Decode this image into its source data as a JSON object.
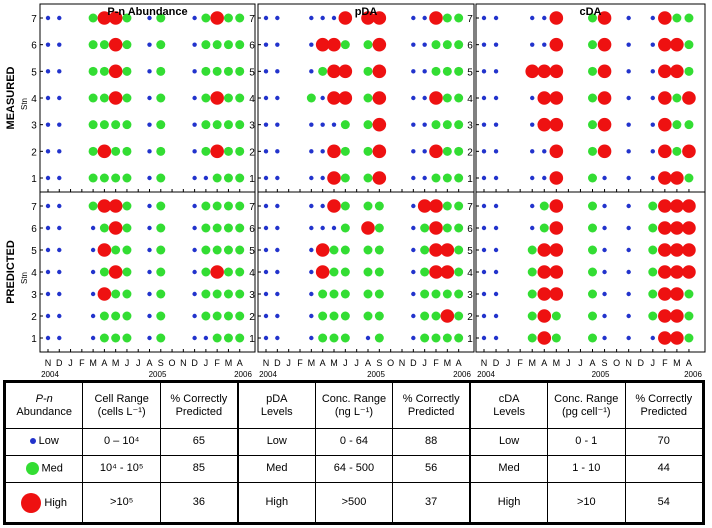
{
  "colors": {
    "low": "#2233cc",
    "med": "#33dd33",
    "high": "#ee1111"
  },
  "ylabel": "Stn",
  "row_labels": [
    "MEASURED",
    "PREDICTED"
  ],
  "stations": [
    "1",
    "2",
    "3",
    "4",
    "5",
    "6",
    "7"
  ],
  "month_ticks": [
    "N",
    "D",
    "J",
    "F",
    "M",
    "A",
    "M",
    "J",
    "J",
    "A",
    "S",
    "O",
    "N",
    "D",
    "J",
    "F",
    "M",
    "A"
  ],
  "year_labels": [
    "2004",
    "2005",
    "2006"
  ],
  "chart_data": {
    "type": "scatter",
    "note_levels": [
      "L = Low",
      "M = Med",
      "H = High"
    ],
    "months": [
      "N04",
      "D04",
      "J05",
      "F05",
      "M05",
      "A05",
      "M05b",
      "J05",
      "J05b",
      "A05",
      "S05",
      "O05",
      "N05",
      "D05",
      "J06",
      "F06",
      "M06",
      "A06"
    ],
    "panels": [
      {
        "title": "P-n Abundance",
        "row": "MEASURED",
        "levels": [
          "LLLLLLL",
          "LLLLLLL",
          "",
          "",
          "MMMMMMM",
          "MHMMMMH",
          "MMMHHHH",
          "MMMMMMM",
          "",
          "LLLLLLL",
          "MMMMMMM",
          "",
          "",
          "LLLLLLL",
          "LMMMMMM",
          "MHMHMMH",
          "MMMMMMM",
          "MMMMMMM"
        ]
      },
      {
        "title": "pDA",
        "row": "MEASURED",
        "levels": [
          "LLLLLLL",
          "LLLLLLL",
          "",
          "",
          "LLLMLLL",
          "LLLLMHL",
          "HHLHHHL",
          "MMMHHMH",
          "",
          "MMMMMMH",
          "HHHHHHH",
          "",
          "",
          "LLLLLLL",
          "LLLLLLL",
          "MHMHMMH",
          "MMMMMMM",
          "MMMMMMM"
        ]
      },
      {
        "title": "cDA",
        "row": "MEASURED",
        "levels": [
          "LLLLLLL",
          "LLLLLLL",
          "",
          "",
          "LLLLHLL",
          "LLHHHLL",
          "HHHHHHH",
          "",
          "",
          "MMMMMMM",
          "LHHHHHH",
          "",
          "LLLLLLL",
          "",
          "LLLLLLL",
          "HHHHHHH",
          "HMMMHHM",
          "MHMHMMM"
        ]
      },
      {
        "title": "P-n Abundance",
        "row": "PREDICTED",
        "levels": [
          "LLLLLLL",
          "LLLLLLL",
          "",
          "",
          "LLLLLLM",
          "MMHMHMH",
          "MMMHMHH",
          "MMMMMMM",
          "",
          "LLLLLLL",
          "MMMMMMM",
          "",
          "",
          "LLLLLLL",
          "LMMMMMM",
          "MMMHMMM",
          "MMMMMMM",
          "MMMMMMM"
        ]
      },
      {
        "title": "pDA",
        "row": "PREDICTED",
        "levels": [
          "LLLLLLL",
          "LLLLLLL",
          "",
          "",
          "LLLLLLL",
          "MMMHHLL",
          "MMMMMLH",
          "MMMMMMM",
          "",
          "LMMMMHM",
          "MMMMMMM",
          "",
          "",
          "LLLLLLL",
          "MMMMMMH",
          "MMMHHHH",
          "MHMHHMM",
          "MMMMMMM"
        ]
      },
      {
        "title": "cDA",
        "row": "PREDICTED",
        "levels": [
          "LLLLLLL",
          "LLLLLLL",
          "",
          "",
          "MMMMMLL",
          "HHHHHMM",
          "MMHHHHH",
          "",
          "",
          "MMMMMMM",
          "LLLLLLL",
          "",
          "LLLLLLL",
          "",
          "LMMMMMM",
          "HHHHHHH",
          "HHHHHHH",
          "MMMHHHH"
        ]
      }
    ]
  },
  "table": {
    "headers": [
      {
        "a": "P-n",
        "b": "Abundance",
        "range": "Cell Range",
        "range2": "(cells L⁻¹)",
        "pct": "% Correctly",
        "pct2": "Predicted"
      },
      {
        "a": "pDA",
        "b": "Levels",
        "range": "Conc. Range",
        "range2": "(ng L⁻¹)",
        "pct": "% Correctly",
        "pct2": "Predicted"
      },
      {
        "a": "cDA",
        "b": "Levels",
        "range": "Conc. Range",
        "range2": "(pg cell⁻¹)",
        "pct": "% Correctly",
        "pct2": "Predicted"
      }
    ],
    "rows": [
      {
        "level": "Low",
        "pn_range": "0 – 10⁴",
        "pn_pct": "65",
        "pda_level": "Low",
        "pda_range": "0 - 64",
        "pda_pct": "88",
        "cda_level": "Low",
        "cda_range": "0 - 1",
        "cda_pct": "70"
      },
      {
        "level": "Med",
        "pn_range": "10⁴ - 10⁵",
        "pn_pct": "85",
        "pda_level": "Med",
        "pda_range": "64 - 500",
        "pda_pct": "56",
        "cda_level": "Med",
        "cda_range": "1 - 10",
        "cda_pct": "44"
      },
      {
        "level": "High",
        "pn_range": ">10⁵",
        "pn_pct": "36",
        "pda_level": "High",
        "pda_range": ">500",
        "pda_pct": "37",
        "cda_level": "High",
        "cda_range": ">10",
        "cda_pct": "54"
      }
    ]
  }
}
